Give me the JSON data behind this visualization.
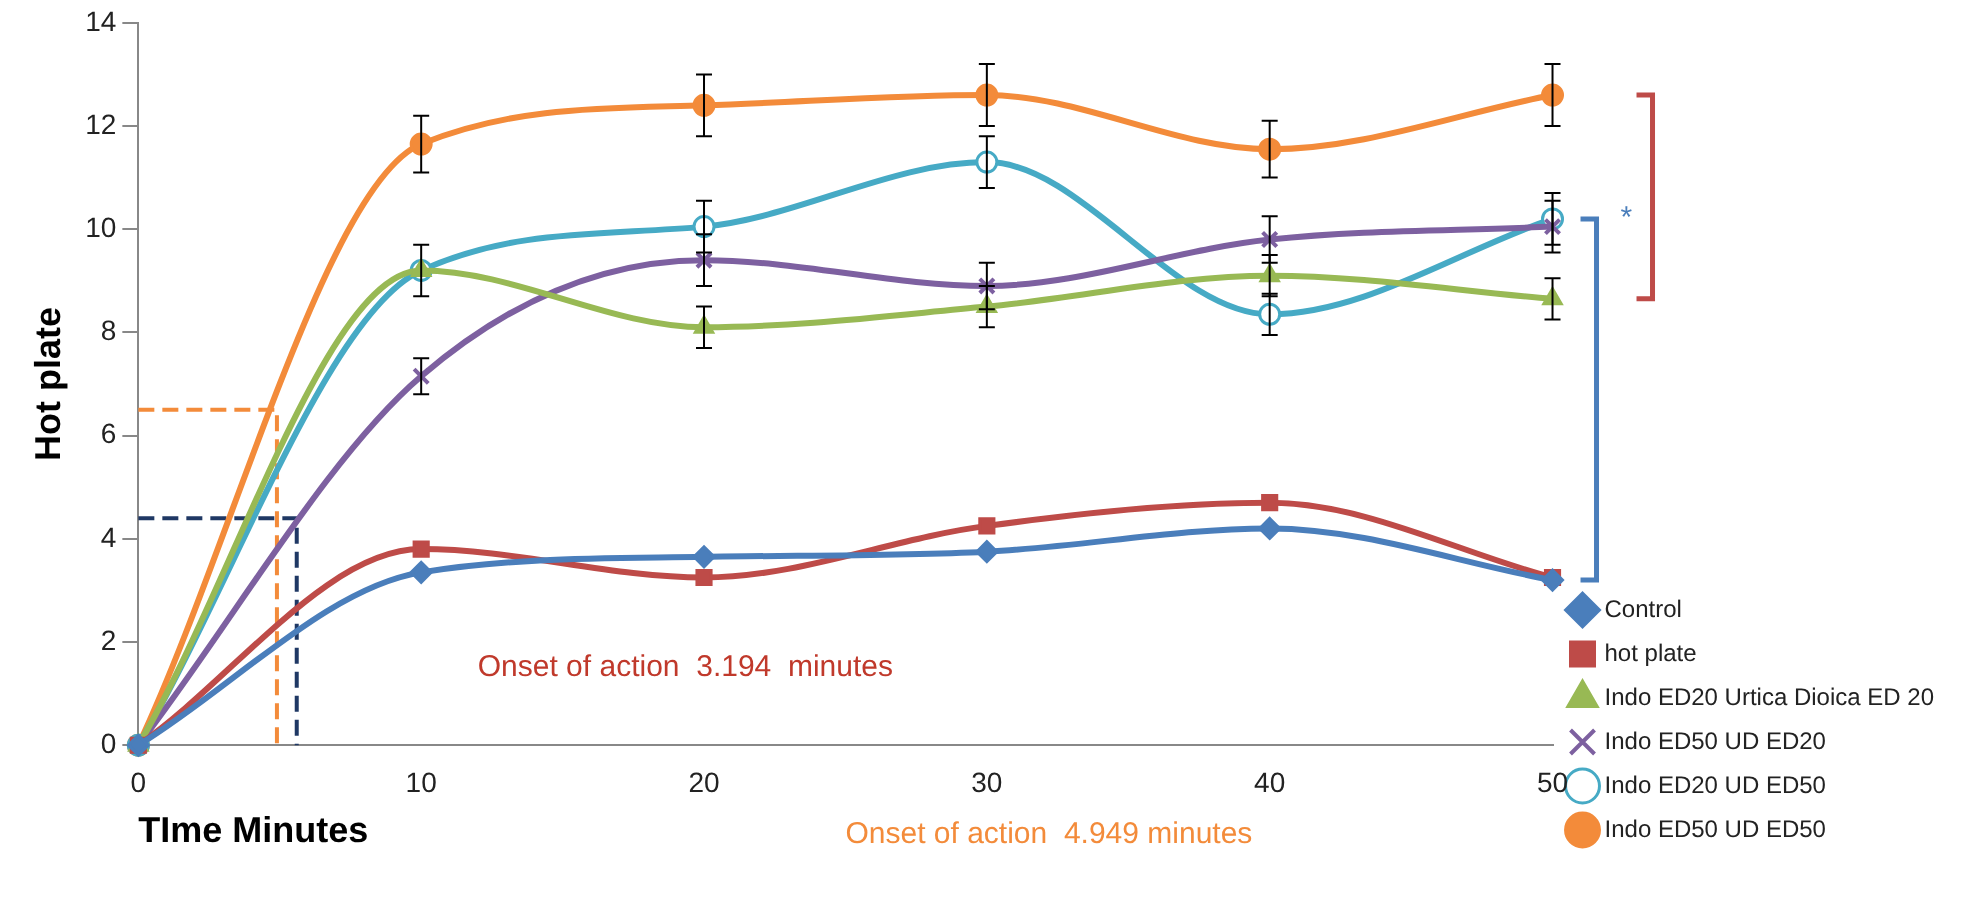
{
  "chart_data": {
    "type": "line",
    "xlabel": "TIme Minutes",
    "ylabel": "Hot plate",
    "x": [
      0,
      10,
      20,
      30,
      40,
      50
    ],
    "xlim": [
      0,
      50
    ],
    "xticks": [
      0,
      10,
      20,
      30,
      40,
      50
    ],
    "ylim": [
      0,
      14
    ],
    "yticks": [
      0,
      2,
      4,
      6,
      8,
      10,
      12,
      14
    ],
    "grid": false,
    "legend": "right",
    "series": [
      {
        "name": "Control",
        "color": "#4a7ebb",
        "marker": "diamond",
        "values": [
          0,
          3.35,
          3.65,
          3.75,
          4.2,
          3.2
        ]
      },
      {
        "name": "hot plate",
        "color": "#be4b48",
        "marker": "square",
        "values": [
          0,
          3.8,
          3.25,
          4.25,
          4.7,
          3.25
        ]
      },
      {
        "name": "Indo ED20 Urtica Dioica ED 20",
        "color": "#98b954",
        "marker": "triangle",
        "values": [
          0,
          9.2,
          8.1,
          8.5,
          9.1,
          8.65
        ],
        "errors": [
          null,
          0.5,
          0.4,
          0.4,
          0.4,
          0.4
        ]
      },
      {
        "name": "Indo ED50 UD ED20",
        "color": "#7d60a0",
        "marker": "cross",
        "values": [
          0,
          7.15,
          9.4,
          8.9,
          9.8,
          10.05
        ],
        "errors": [
          null,
          0.35,
          0.5,
          0.45,
          0.45,
          0.5
        ]
      },
      {
        "name": "Indo ED20 UD ED50",
        "color": "#46aac5",
        "marker": "circle",
        "values": [
          0,
          9.2,
          10.05,
          11.3,
          8.35,
          10.2
        ],
        "errors": [
          null,
          null,
          0.5,
          0.5,
          0.4,
          0.5
        ]
      },
      {
        "name": "Indo ED50 UD ED50",
        "color": "#f38b3a",
        "marker": "circle",
        "values": [
          0,
          11.65,
          12.4,
          12.6,
          11.55,
          12.6
        ],
        "errors": [
          null,
          0.55,
          0.6,
          0.6,
          0.55,
          0.6
        ]
      },
      {
        "color": "#1f3864",
        "marker": "none",
        "line_style": "dashed",
        "x": [
          0,
          5.6,
          5.6
        ],
        "values": [
          4.4,
          4.4,
          0
        ]
      },
      {
        "color": "#f38b3a",
        "marker": "none",
        "line_style": "dashed",
        "x": [
          0,
          4.9,
          4.9
        ],
        "values": [
          6.5,
          6.5,
          0
        ]
      }
    ],
    "annotations": [
      "Onset of action  3.194  minutes",
      "Onset of action  4.949 minutes",
      "*"
    ]
  }
}
